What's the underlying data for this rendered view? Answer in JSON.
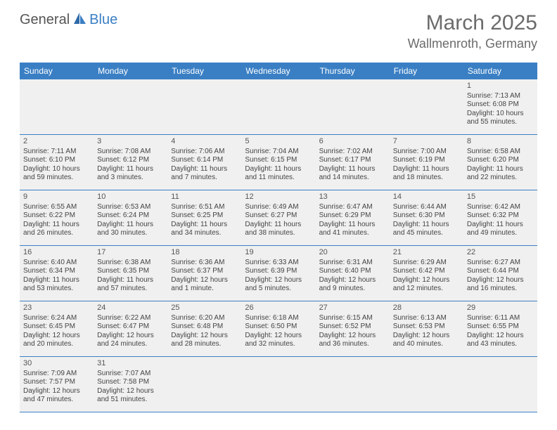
{
  "logo": {
    "general": "General",
    "blue": "Blue"
  },
  "title": {
    "month": "March 2025",
    "location": "Wallmenroth, Germany"
  },
  "colors": {
    "header_bg": "#3a7fc4",
    "header_text": "#ffffff",
    "cell_bg": "#f0f0f0",
    "border": "#3a7fc4",
    "body_text": "#444444",
    "title_text": "#6b6b6b"
  },
  "day_labels": [
    "Sunday",
    "Monday",
    "Tuesday",
    "Wednesday",
    "Thursday",
    "Friday",
    "Saturday"
  ],
  "weeks": [
    [
      null,
      null,
      null,
      null,
      null,
      null,
      {
        "n": "1",
        "sr": "Sunrise: 7:13 AM",
        "ss": "Sunset: 6:08 PM",
        "dl": "Daylight: 10 hours and 55 minutes."
      }
    ],
    [
      {
        "n": "2",
        "sr": "Sunrise: 7:11 AM",
        "ss": "Sunset: 6:10 PM",
        "dl": "Daylight: 10 hours and 59 minutes."
      },
      {
        "n": "3",
        "sr": "Sunrise: 7:08 AM",
        "ss": "Sunset: 6:12 PM",
        "dl": "Daylight: 11 hours and 3 minutes."
      },
      {
        "n": "4",
        "sr": "Sunrise: 7:06 AM",
        "ss": "Sunset: 6:14 PM",
        "dl": "Daylight: 11 hours and 7 minutes."
      },
      {
        "n": "5",
        "sr": "Sunrise: 7:04 AM",
        "ss": "Sunset: 6:15 PM",
        "dl": "Daylight: 11 hours and 11 minutes."
      },
      {
        "n": "6",
        "sr": "Sunrise: 7:02 AM",
        "ss": "Sunset: 6:17 PM",
        "dl": "Daylight: 11 hours and 14 minutes."
      },
      {
        "n": "7",
        "sr": "Sunrise: 7:00 AM",
        "ss": "Sunset: 6:19 PM",
        "dl": "Daylight: 11 hours and 18 minutes."
      },
      {
        "n": "8",
        "sr": "Sunrise: 6:58 AM",
        "ss": "Sunset: 6:20 PM",
        "dl": "Daylight: 11 hours and 22 minutes."
      }
    ],
    [
      {
        "n": "9",
        "sr": "Sunrise: 6:55 AM",
        "ss": "Sunset: 6:22 PM",
        "dl": "Daylight: 11 hours and 26 minutes."
      },
      {
        "n": "10",
        "sr": "Sunrise: 6:53 AM",
        "ss": "Sunset: 6:24 PM",
        "dl": "Daylight: 11 hours and 30 minutes."
      },
      {
        "n": "11",
        "sr": "Sunrise: 6:51 AM",
        "ss": "Sunset: 6:25 PM",
        "dl": "Daylight: 11 hours and 34 minutes."
      },
      {
        "n": "12",
        "sr": "Sunrise: 6:49 AM",
        "ss": "Sunset: 6:27 PM",
        "dl": "Daylight: 11 hours and 38 minutes."
      },
      {
        "n": "13",
        "sr": "Sunrise: 6:47 AM",
        "ss": "Sunset: 6:29 PM",
        "dl": "Daylight: 11 hours and 41 minutes."
      },
      {
        "n": "14",
        "sr": "Sunrise: 6:44 AM",
        "ss": "Sunset: 6:30 PM",
        "dl": "Daylight: 11 hours and 45 minutes."
      },
      {
        "n": "15",
        "sr": "Sunrise: 6:42 AM",
        "ss": "Sunset: 6:32 PM",
        "dl": "Daylight: 11 hours and 49 minutes."
      }
    ],
    [
      {
        "n": "16",
        "sr": "Sunrise: 6:40 AM",
        "ss": "Sunset: 6:34 PM",
        "dl": "Daylight: 11 hours and 53 minutes."
      },
      {
        "n": "17",
        "sr": "Sunrise: 6:38 AM",
        "ss": "Sunset: 6:35 PM",
        "dl": "Daylight: 11 hours and 57 minutes."
      },
      {
        "n": "18",
        "sr": "Sunrise: 6:36 AM",
        "ss": "Sunset: 6:37 PM",
        "dl": "Daylight: 12 hours and 1 minute."
      },
      {
        "n": "19",
        "sr": "Sunrise: 6:33 AM",
        "ss": "Sunset: 6:39 PM",
        "dl": "Daylight: 12 hours and 5 minutes."
      },
      {
        "n": "20",
        "sr": "Sunrise: 6:31 AM",
        "ss": "Sunset: 6:40 PM",
        "dl": "Daylight: 12 hours and 9 minutes."
      },
      {
        "n": "21",
        "sr": "Sunrise: 6:29 AM",
        "ss": "Sunset: 6:42 PM",
        "dl": "Daylight: 12 hours and 12 minutes."
      },
      {
        "n": "22",
        "sr": "Sunrise: 6:27 AM",
        "ss": "Sunset: 6:44 PM",
        "dl": "Daylight: 12 hours and 16 minutes."
      }
    ],
    [
      {
        "n": "23",
        "sr": "Sunrise: 6:24 AM",
        "ss": "Sunset: 6:45 PM",
        "dl": "Daylight: 12 hours and 20 minutes."
      },
      {
        "n": "24",
        "sr": "Sunrise: 6:22 AM",
        "ss": "Sunset: 6:47 PM",
        "dl": "Daylight: 12 hours and 24 minutes."
      },
      {
        "n": "25",
        "sr": "Sunrise: 6:20 AM",
        "ss": "Sunset: 6:48 PM",
        "dl": "Daylight: 12 hours and 28 minutes."
      },
      {
        "n": "26",
        "sr": "Sunrise: 6:18 AM",
        "ss": "Sunset: 6:50 PM",
        "dl": "Daylight: 12 hours and 32 minutes."
      },
      {
        "n": "27",
        "sr": "Sunrise: 6:15 AM",
        "ss": "Sunset: 6:52 PM",
        "dl": "Daylight: 12 hours and 36 minutes."
      },
      {
        "n": "28",
        "sr": "Sunrise: 6:13 AM",
        "ss": "Sunset: 6:53 PM",
        "dl": "Daylight: 12 hours and 40 minutes."
      },
      {
        "n": "29",
        "sr": "Sunrise: 6:11 AM",
        "ss": "Sunset: 6:55 PM",
        "dl": "Daylight: 12 hours and 43 minutes."
      }
    ],
    [
      {
        "n": "30",
        "sr": "Sunrise: 7:09 AM",
        "ss": "Sunset: 7:57 PM",
        "dl": "Daylight: 12 hours and 47 minutes."
      },
      {
        "n": "31",
        "sr": "Sunrise: 7:07 AM",
        "ss": "Sunset: 7:58 PM",
        "dl": "Daylight: 12 hours and 51 minutes."
      },
      null,
      null,
      null,
      null,
      null
    ]
  ]
}
